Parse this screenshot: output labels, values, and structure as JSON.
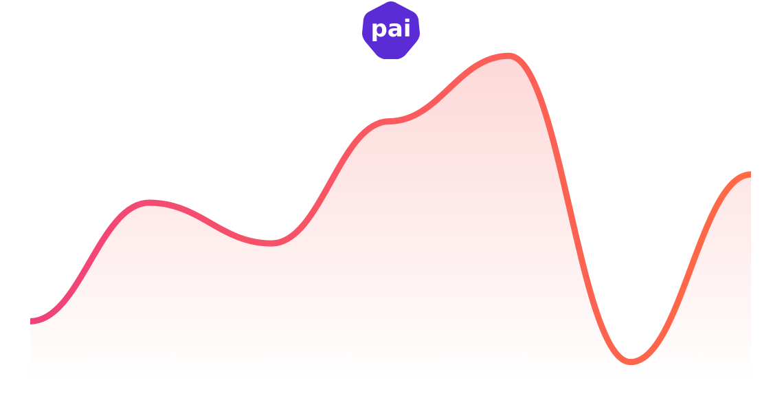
{
  "logo": {
    "text": "pai",
    "color": "#5B2BD6",
    "text_color": "#FFFFFF"
  },
  "colors": {
    "line_start": "#F0427A",
    "line_mid": "#FA5C5C",
    "line_end": "#FF6A45",
    "fill_top": "#FDD6D6",
    "fill_bottom": "#FFFFFF"
  },
  "chart_data": {
    "type": "area",
    "title": "",
    "xlabel": "",
    "ylabel": "",
    "grid": false,
    "legend": "none",
    "smooth": true,
    "xlim": [
      0,
      1
    ],
    "ylim": [
      0,
      1
    ],
    "x": [
      0,
      0.165,
      0.335,
      0.498,
      0.664,
      0.833,
      1.0
    ],
    "series": [
      {
        "values": [
          0.17,
          0.505,
          0.39,
          0.735,
          0.92,
          0.055,
          0.585
        ]
      }
    ]
  }
}
